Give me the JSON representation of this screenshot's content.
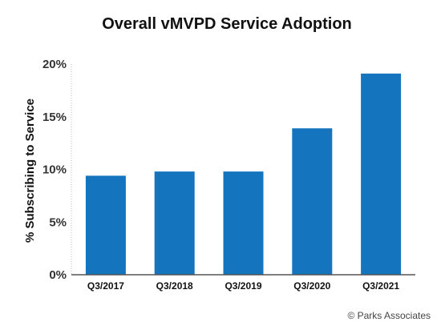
{
  "chart_data": {
    "type": "bar",
    "title": "Overall vMVPD Service Adoption",
    "xlabel": "",
    "ylabel": "% Subscribing to Service",
    "categories": [
      "Q3/2017",
      "Q3/2018",
      "Q3/2019",
      "Q3/2020",
      "Q3/2021"
    ],
    "values": [
      9.4,
      9.8,
      9.8,
      13.9,
      19.1
    ],
    "ylim": [
      0,
      20
    ],
    "yticks": [
      0,
      5,
      10,
      15,
      20
    ],
    "ytick_labels": [
      "0%",
      "5%",
      "10%",
      "15%",
      "20%"
    ],
    "grid": false,
    "bar_color": "#1474be",
    "credit": "© Parks Associates"
  }
}
